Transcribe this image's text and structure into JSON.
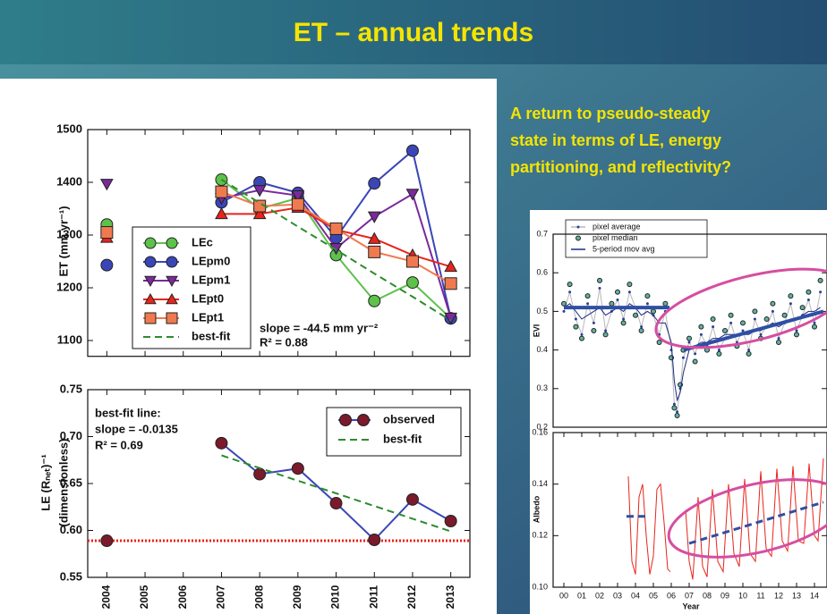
{
  "slide": {
    "title": "ET – annual trends",
    "text": [
      "A return to pseudo-steady",
      "state in terms of LE, energy",
      "partitioning, and reflectivity?"
    ]
  },
  "chart_data": [
    {
      "type": "line",
      "y_label": "ET (mm yr⁻¹)",
      "annotations": [
        "slope = -44.5 mm yr⁻²",
        "R² = 0.88"
      ],
      "categories": [
        "2004",
        "2005",
        "2006",
        "2007",
        "2008",
        "2009",
        "2010",
        "2011",
        "2012",
        "2013"
      ],
      "ylim": [
        1070,
        1500
      ],
      "yticks": [
        1100,
        1200,
        1300,
        1400,
        1500
      ],
      "series": [
        {
          "name": "LEc",
          "color": "#5cc24a",
          "marker": "circle",
          "values": [
            1320,
            null,
            null,
            1405,
            1350,
            1370,
            1262,
            1175,
            1210,
            1142
          ]
        },
        {
          "name": "LEpm0",
          "color": "#3a46b8",
          "marker": "circle",
          "values": [
            1243,
            null,
            null,
            1362,
            1400,
            1380,
            1295,
            1398,
            1460,
            1142
          ]
        },
        {
          "name": "LEpm1",
          "color": "#7a2a9a",
          "marker": "triangle-down",
          "values": [
            1397,
            null,
            null,
            1370,
            1385,
            1375,
            1275,
            1335,
            1378,
            1143
          ]
        },
        {
          "name": "LEpt0",
          "color": "#e8241c",
          "marker": "triangle-up",
          "values": [
            1295,
            null,
            null,
            1340,
            1340,
            1352,
            1310,
            1293,
            1262,
            1240
          ]
        },
        {
          "name": "LEpt1",
          "color": "#f07a50",
          "marker": "square",
          "values": [
            1305,
            null,
            null,
            1382,
            1355,
            1358,
            1312,
            1268,
            1250,
            1208
          ]
        },
        {
          "name": "best-fit",
          "color": "#2e8b2e",
          "dash": true,
          "values": [
            null,
            null,
            null,
            1405,
            1361,
            1316,
            1272,
            1227,
            1183,
            1138
          ]
        }
      ]
    },
    {
      "type": "line",
      "y_label": [
        "LE (Rₙₑₜ)⁻¹",
        "(dimensionless)"
      ],
      "annotations": [
        "best-fit line:",
        "slope = -0.0135",
        "R² = 0.69"
      ],
      "categories": [
        "2004",
        "2005",
        "2006",
        "2007",
        "2008",
        "2009",
        "2010",
        "2011",
        "2012",
        "2013"
      ],
      "ylim": [
        0.55,
        0.75
      ],
      "yticks": [
        0.55,
        {
          "value": 0.6,
          "label": "0.60"
        },
        0.65,
        {
          "value": 0.7,
          "label": "0.70"
        },
        0.75
      ],
      "hline": {
        "value": 0.589,
        "color": "#e8241c"
      },
      "series": [
        {
          "name": "observed",
          "color": "#3a46b8",
          "marker_fill": "#7a1a2a",
          "marker": "circle",
          "values": [
            0.589,
            null,
            null,
            0.693,
            0.66,
            0.666,
            0.629,
            0.59,
            0.633,
            0.61
          ]
        },
        {
          "name": "best-fit",
          "color": "#2e8b2e",
          "dash": true,
          "values": [
            null,
            null,
            null,
            0.68,
            0.6665,
            0.653,
            0.6395,
            0.626,
            0.6125,
            0.599
          ]
        }
      ]
    },
    {
      "type": "line",
      "y_label": "EVI",
      "xlim": [
        -0.6,
        14.7
      ],
      "ylim": [
        0.2,
        0.7
      ],
      "yticks": [
        0.2,
        0.3,
        0.4,
        0.5,
        0.6,
        0.7
      ],
      "x": [
        0,
        0.33,
        0.67,
        1,
        1.33,
        1.67,
        2,
        2.33,
        2.67,
        3,
        3.33,
        3.67,
        4,
        4.33,
        4.67,
        5,
        5.33,
        5.67,
        6,
        6.17,
        6.33,
        6.5,
        6.67,
        7,
        7.33,
        7.67,
        8,
        8.33,
        8.67,
        9,
        9.33,
        9.67,
        10,
        10.33,
        10.67,
        11,
        11.33,
        11.67,
        12,
        12.33,
        12.67,
        13,
        13.33,
        13.67,
        14,
        14.33
      ],
      "series": [
        {
          "name": "pixel average",
          "color": "#2b3d9e",
          "line_color": "#b8b8b8",
          "marker": "dot",
          "values": [
            0.5,
            0.55,
            0.48,
            0.44,
            0.52,
            0.47,
            0.56,
            0.45,
            0.5,
            0.53,
            0.48,
            0.55,
            0.51,
            0.46,
            0.52,
            0.49,
            0.44,
            0.5,
            0.4,
            0.26,
            0.24,
            0.3,
            0.38,
            0.42,
            0.39,
            0.44,
            0.41,
            0.46,
            0.4,
            0.43,
            0.47,
            0.42,
            0.45,
            0.4,
            0.48,
            0.44,
            0.46,
            0.5,
            0.43,
            0.47,
            0.52,
            0.45,
            0.49,
            0.53,
            0.47,
            0.55
          ]
        },
        {
          "name": "pixel median",
          "color": "#5fb3a0",
          "marker": "circle",
          "no_line": true,
          "values": [
            0.52,
            0.57,
            0.46,
            0.43,
            0.54,
            0.45,
            0.58,
            0.44,
            0.52,
            0.55,
            0.47,
            0.57,
            0.49,
            0.45,
            0.54,
            0.5,
            0.42,
            0.52,
            0.38,
            0.25,
            0.23,
            0.31,
            0.4,
            0.43,
            0.37,
            0.46,
            0.4,
            0.48,
            0.39,
            0.45,
            0.49,
            0.41,
            0.47,
            0.39,
            0.5,
            0.43,
            0.48,
            0.52,
            0.42,
            0.49,
            0.54,
            0.44,
            0.51,
            0.55,
            0.46,
            0.58
          ]
        },
        {
          "name": "5-period mov avg",
          "color": "#1c2a80",
          "values": [
            0.51,
            0.52,
            0.5,
            0.48,
            0.49,
            0.5,
            0.51,
            0.49,
            0.5,
            0.51,
            0.5,
            0.52,
            0.51,
            0.49,
            0.5,
            0.49,
            0.47,
            0.47,
            0.42,
            0.32,
            0.27,
            0.29,
            0.34,
            0.4,
            0.41,
            0.42,
            0.42,
            0.43,
            0.43,
            0.44,
            0.44,
            0.44,
            0.44,
            0.44,
            0.45,
            0.45,
            0.46,
            0.47,
            0.46,
            0.47,
            0.48,
            0.48,
            0.49,
            0.5,
            0.5,
            0.51
          ]
        },
        {
          "color": "#2e4fa3",
          "width": 4,
          "x": [
            0,
            5.9
          ],
          "values": [
            0.51,
            0.51
          ]
        },
        {
          "color": "#2e4fa3",
          "width": 4,
          "x": [
            6.7,
            14.5
          ],
          "values": [
            0.4,
            0.5
          ]
        }
      ]
    },
    {
      "type": "line",
      "y_label": "Albedo",
      "x_label": "Year",
      "xlim": [
        -0.6,
        14.7
      ],
      "xticks": [
        {
          "value": 0,
          "label": "00"
        },
        {
          "value": 1,
          "label": "01"
        },
        {
          "value": 2,
          "label": "02"
        },
        {
          "value": 3,
          "label": "03"
        },
        {
          "value": 4,
          "label": "04"
        },
        {
          "value": 5,
          "label": "05"
        },
        {
          "value": 6,
          "label": "06"
        },
        {
          "value": 7,
          "label": "07"
        },
        {
          "value": 8,
          "label": "08"
        },
        {
          "value": 9,
          "label": "09"
        },
        10,
        11,
        12,
        13,
        14
      ],
      "ylim": [
        0.1,
        0.16
      ],
      "yticks": [
        {
          "value": 0.1,
          "label": "0.10"
        },
        0.12,
        0.14,
        0.16
      ],
      "series": [
        {
          "color": "#e8241c",
          "x": [
            3.6,
            3.8,
            4.0,
            4.2,
            4.4,
            4.6,
            4.8,
            5.0,
            5.2,
            5.4,
            5.6,
            5.8,
            5.95,
            6.4,
            6.8,
            7.0,
            7.2,
            7.5,
            7.75,
            8.0,
            8.3,
            8.6,
            8.9,
            9.2,
            9.5,
            9.8,
            10.1,
            10.4,
            10.7,
            11.0,
            11.3,
            11.6,
            11.9,
            12.2,
            12.5,
            12.8,
            13.1,
            13.4,
            13.7,
            14.0,
            14.2,
            14.5
          ],
          "values": [
            0.143,
            0.11,
            0.105,
            0.135,
            0.14,
            0.12,
            0.105,
            0.112,
            0.138,
            0.14,
            0.125,
            0.107,
            0.106,
            null,
            0.13,
            0.11,
            0.103,
            0.135,
            0.108,
            0.104,
            0.138,
            0.11,
            0.106,
            0.14,
            0.113,
            0.108,
            0.142,
            0.113,
            0.11,
            0.145,
            0.115,
            0.112,
            0.146,
            0.118,
            0.114,
            0.147,
            0.118,
            0.117,
            0.148,
            0.12,
            0.118,
            0.15
          ]
        },
        {
          "color": "#2e4fa3",
          "dash": true,
          "width": 3,
          "x": [
            3.5,
            4.8
          ],
          "values": [
            0.1275,
            0.1275
          ]
        },
        {
          "color": "#2e4fa3",
          "dash": true,
          "width": 3,
          "x": [
            7,
            14.5
          ],
          "values": [
            0.117,
            0.133
          ]
        }
      ]
    }
  ]
}
